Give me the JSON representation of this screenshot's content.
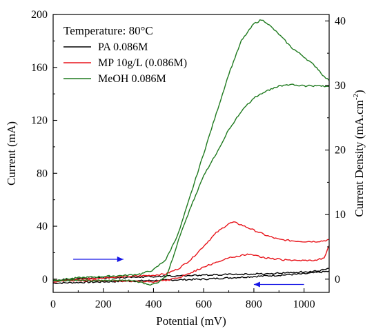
{
  "chart_data": {
    "type": "line",
    "annotation": "Temperature: 80°C",
    "xlabel": "Potential (mV)",
    "ylabel": "Current (mA)",
    "y2label_main": "Current Density (mA.cm",
    "y2label_sup": "-2",
    "y2label_end": ")",
    "xlim": [
      0,
      1100
    ],
    "ylim": [
      -10,
      200
    ],
    "y2lim": [
      -2.05,
      41.0
    ],
    "xticks": [
      0,
      200,
      400,
      600,
      800,
      1000
    ],
    "yticks": [
      0,
      40,
      80,
      120,
      160,
      200
    ],
    "y2ticks": [
      0,
      10,
      20,
      30,
      40
    ],
    "grid": false,
    "legend_position": "top-left",
    "series": [
      {
        "name": "PA 0.086M",
        "color": "#000000",
        "forward": [
          [
            0,
            -3
          ],
          [
            100,
            -2.5
          ],
          [
            200,
            -2
          ],
          [
            300,
            -1.5
          ],
          [
            400,
            -1
          ],
          [
            500,
            -0.5
          ],
          [
            600,
            0
          ],
          [
            700,
            1
          ],
          [
            800,
            2
          ],
          [
            900,
            3
          ],
          [
            1000,
            4
          ],
          [
            1050,
            5
          ],
          [
            1100,
            6
          ]
        ],
        "reverse": [
          [
            1100,
            8
          ],
          [
            1050,
            6
          ],
          [
            1000,
            5.5
          ],
          [
            900,
            4.5
          ],
          [
            800,
            4
          ],
          [
            700,
            3.5
          ],
          [
            600,
            3
          ],
          [
            500,
            2.5
          ],
          [
            400,
            2
          ],
          [
            300,
            1.5
          ],
          [
            200,
            1
          ],
          [
            100,
            0.5
          ],
          [
            0,
            -1
          ]
        ]
      },
      {
        "name": "MP 10g/L (0.086M)",
        "color": "#e8141b",
        "forward": [
          [
            0,
            -2
          ],
          [
            100,
            0
          ],
          [
            200,
            1
          ],
          [
            300,
            2
          ],
          [
            400,
            3
          ],
          [
            450,
            4
          ],
          [
            500,
            8
          ],
          [
            550,
            15
          ],
          [
            600,
            25
          ],
          [
            650,
            35
          ],
          [
            700,
            42
          ],
          [
            720,
            43
          ],
          [
            750,
            41
          ],
          [
            800,
            37
          ],
          [
            850,
            33
          ],
          [
            900,
            30
          ],
          [
            950,
            29
          ],
          [
            1000,
            28.5
          ],
          [
            1050,
            28.5
          ],
          [
            1080,
            29
          ],
          [
            1100,
            30
          ]
        ],
        "reverse": [
          [
            1100,
            25
          ],
          [
            1080,
            16
          ],
          [
            1050,
            14.5
          ],
          [
            1000,
            14
          ],
          [
            950,
            14
          ],
          [
            900,
            15
          ],
          [
            850,
            16
          ],
          [
            800,
            18
          ],
          [
            780,
            19
          ],
          [
            750,
            18
          ],
          [
            700,
            16
          ],
          [
            650,
            13
          ],
          [
            600,
            9
          ],
          [
            550,
            5
          ],
          [
            500,
            1
          ],
          [
            450,
            -1
          ],
          [
            400,
            -2
          ],
          [
            300,
            -1.5
          ],
          [
            200,
            -1
          ],
          [
            100,
            -1
          ],
          [
            0,
            -1
          ]
        ]
      },
      {
        "name": "MeOH 0.086M",
        "color": "#1f7a1f",
        "forward": [
          [
            0,
            -1
          ],
          [
            100,
            1
          ],
          [
            200,
            2
          ],
          [
            300,
            3
          ],
          [
            350,
            4
          ],
          [
            400,
            7
          ],
          [
            450,
            15
          ],
          [
            500,
            35
          ],
          [
            550,
            65
          ],
          [
            600,
            95
          ],
          [
            650,
            125
          ],
          [
            700,
            155
          ],
          [
            750,
            180
          ],
          [
            800,
            193
          ],
          [
            830,
            196
          ],
          [
            850,
            194
          ],
          [
            900,
            185
          ],
          [
            950,
            175
          ],
          [
            1000,
            168
          ],
          [
            1050,
            160
          ],
          [
            1080,
            153
          ],
          [
            1100,
            150
          ]
        ],
        "reverse": [
          [
            1100,
            146
          ],
          [
            1050,
            146
          ],
          [
            1000,
            146
          ],
          [
            950,
            147
          ],
          [
            900,
            146
          ],
          [
            850,
            142
          ],
          [
            800,
            137
          ],
          [
            750,
            127
          ],
          [
            700,
            113
          ],
          [
            650,
            95
          ],
          [
            600,
            78
          ],
          [
            550,
            55
          ],
          [
            500,
            30
          ],
          [
            470,
            12
          ],
          [
            450,
            2
          ],
          [
            420,
            -2
          ],
          [
            400,
            -4
          ],
          [
            380,
            -4
          ],
          [
            340,
            -2
          ],
          [
            300,
            -1
          ],
          [
            200,
            -1
          ],
          [
            100,
            -1
          ],
          [
            0,
            -1
          ]
        ]
      }
    ],
    "arrows": [
      {
        "from": [
          80,
          15
        ],
        "to": [
          280,
          15
        ],
        "color": "#1515e6"
      },
      {
        "from": [
          1000,
          -4
        ],
        "to": [
          800,
          -4
        ],
        "color": "#1515e6"
      }
    ]
  }
}
